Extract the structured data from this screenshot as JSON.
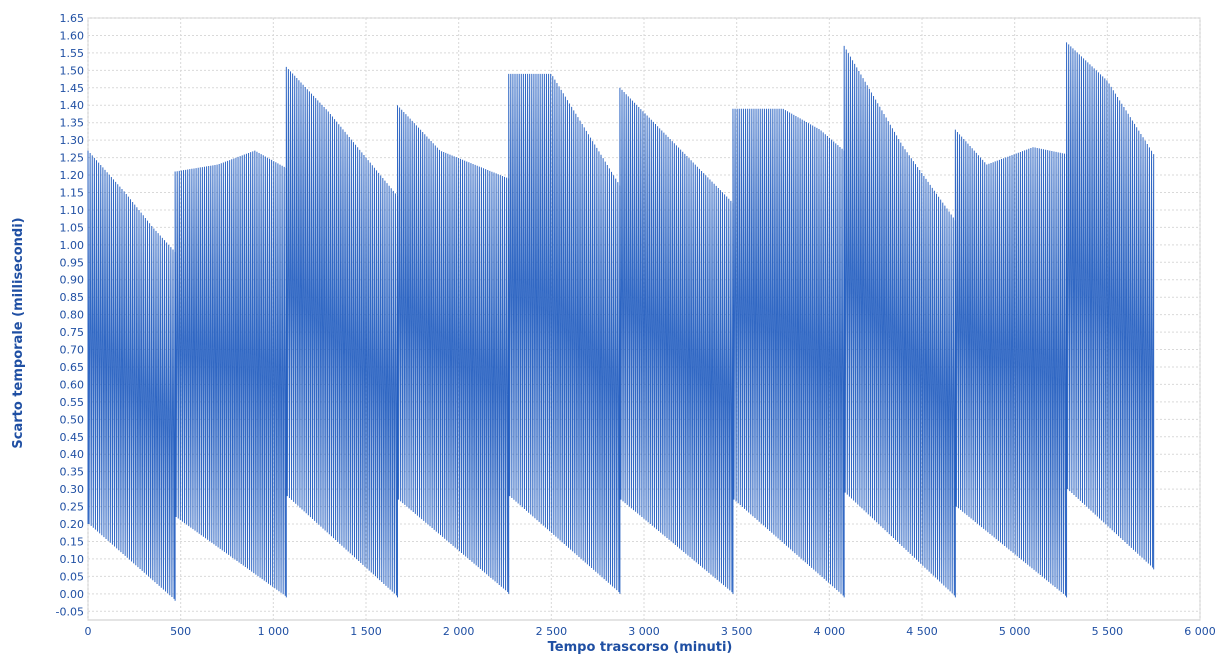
{
  "chart_data": {
    "type": "line",
    "title": "",
    "xlabel": "Tempo trascorso (minuti)",
    "ylabel": "Scarto temporale (millisecondi)",
    "xlim": [
      0,
      6000
    ],
    "ylim": [
      -0.075,
      1.65
    ],
    "grid": true,
    "legend": "none",
    "x_ticks": [
      0,
      500,
      1000,
      1500,
      2000,
      2500,
      3000,
      3500,
      4000,
      4500,
      5000,
      5500,
      6000
    ],
    "x_tick_labels": [
      "0",
      "500",
      "1 000",
      "1 500",
      "2 000",
      "2 500",
      "3 000",
      "3 500",
      "4 000",
      "4 500",
      "5 000",
      "5 500",
      "6 000"
    ],
    "y_ticks": [
      -0.05,
      0,
      0.05,
      0.1,
      0.15,
      0.2,
      0.25,
      0.3,
      0.35,
      0.4,
      0.45,
      0.5,
      0.55,
      0.6,
      0.65,
      0.7,
      0.75,
      0.8,
      0.85,
      0.9,
      0.95,
      1.0,
      1.05,
      1.1,
      1.15,
      1.2,
      1.25,
      1.3,
      1.35,
      1.4,
      1.45,
      1.5,
      1.55,
      1.6,
      1.65
    ],
    "y_tick_labels": [
      "-0.05",
      "0.00",
      "0.05",
      "0.10",
      "0.15",
      "0.20",
      "0.25",
      "0.30",
      "0.35",
      "0.40",
      "0.45",
      "0.50",
      "0.55",
      "0.60",
      "0.65",
      "0.70",
      "0.75",
      "0.80",
      "0.85",
      "0.90",
      "0.95",
      "1.00",
      "1.05",
      "1.10",
      "1.15",
      "1.20",
      "1.25",
      "1.30",
      "1.35",
      "1.40",
      "1.45",
      "1.50",
      "1.55",
      "1.60",
      "1.65"
    ],
    "series": [
      {
        "name": "",
        "color": "#1f5bbf",
        "segments": [
          {
            "x_start": 0,
            "x_end": 470,
            "upper": [
              [
                0,
                1.27
              ],
              [
                200,
                1.15
              ],
              [
                350,
                1.05
              ],
              [
                470,
                0.98
              ]
            ],
            "lower": [
              [
                0,
                0.2
              ],
              [
                470,
                -0.02
              ]
            ]
          },
          {
            "x_start": 470,
            "x_end": 1070,
            "upper": [
              [
                470,
                1.21
              ],
              [
                700,
                1.23
              ],
              [
                900,
                1.27
              ],
              [
                1070,
                1.22
              ]
            ],
            "lower": [
              [
                470,
                0.22
              ],
              [
                1070,
                -0.01
              ]
            ]
          },
          {
            "x_start": 1070,
            "x_end": 1670,
            "upper": [
              [
                1070,
                1.51
              ],
              [
                1300,
                1.38
              ],
              [
                1670,
                1.14
              ]
            ],
            "lower": [
              [
                1070,
                0.28
              ],
              [
                1670,
                -0.01
              ]
            ]
          },
          {
            "x_start": 1670,
            "x_end": 2270,
            "upper": [
              [
                1670,
                1.4
              ],
              [
                1900,
                1.27
              ],
              [
                2270,
                1.19
              ]
            ],
            "lower": [
              [
                1670,
                0.27
              ],
              [
                2270,
                0.0
              ]
            ]
          },
          {
            "x_start": 2270,
            "x_end": 2870,
            "upper": [
              [
                2270,
                1.49
              ],
              [
                2500,
                1.49
              ],
              [
                2870,
                1.17
              ]
            ],
            "lower": [
              [
                2270,
                0.28
              ],
              [
                2870,
                0.0
              ]
            ]
          },
          {
            "x_start": 2870,
            "x_end": 3480,
            "upper": [
              [
                2870,
                1.45
              ],
              [
                3480,
                1.12
              ]
            ],
            "lower": [
              [
                2870,
                0.27
              ],
              [
                3480,
                0.0
              ]
            ]
          },
          {
            "x_start": 3480,
            "x_end": 4080,
            "upper": [
              [
                3480,
                1.39
              ],
              [
                3750,
                1.39
              ],
              [
                3950,
                1.33
              ],
              [
                4080,
                1.27
              ]
            ],
            "lower": [
              [
                3480,
                0.27
              ],
              [
                4080,
                -0.01
              ]
            ]
          },
          {
            "x_start": 4080,
            "x_end": 4680,
            "upper": [
              [
                4080,
                1.57
              ],
              [
                4400,
                1.28
              ],
              [
                4680,
                1.07
              ]
            ],
            "lower": [
              [
                4080,
                0.29
              ],
              [
                4680,
                -0.01
              ]
            ]
          },
          {
            "x_start": 4680,
            "x_end": 5280,
            "upper": [
              [
                4680,
                1.33
              ],
              [
                4850,
                1.23
              ],
              [
                5100,
                1.28
              ],
              [
                5280,
                1.26
              ]
            ],
            "lower": [
              [
                4680,
                0.25
              ],
              [
                5280,
                -0.01
              ]
            ]
          },
          {
            "x_start": 5280,
            "x_end": 5750,
            "upper": [
              [
                5280,
                1.58
              ],
              [
                5500,
                1.47
              ],
              [
                5750,
                1.26
              ]
            ],
            "lower": [
              [
                5280,
                0.3
              ],
              [
                5750,
                0.07
              ]
            ]
          }
        ]
      }
    ]
  }
}
